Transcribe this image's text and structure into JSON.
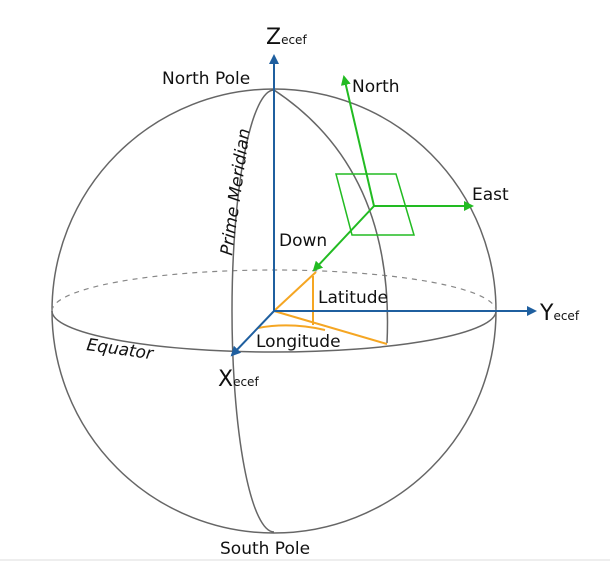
{
  "labels": {
    "z_axis": {
      "main": "Z",
      "sub": "ecef"
    },
    "y_axis": {
      "main": "Y",
      "sub": "ecef"
    },
    "x_axis": {
      "main": "X",
      "sub": "ecef"
    },
    "north_pole": "North Pole",
    "south_pole": "South Pole",
    "prime_meridian": "Prime Meridian",
    "equator": "Equator",
    "north": "North",
    "east": "East",
    "down": "Down",
    "latitude": "Latitude",
    "longitude": "Longitude"
  }
}
